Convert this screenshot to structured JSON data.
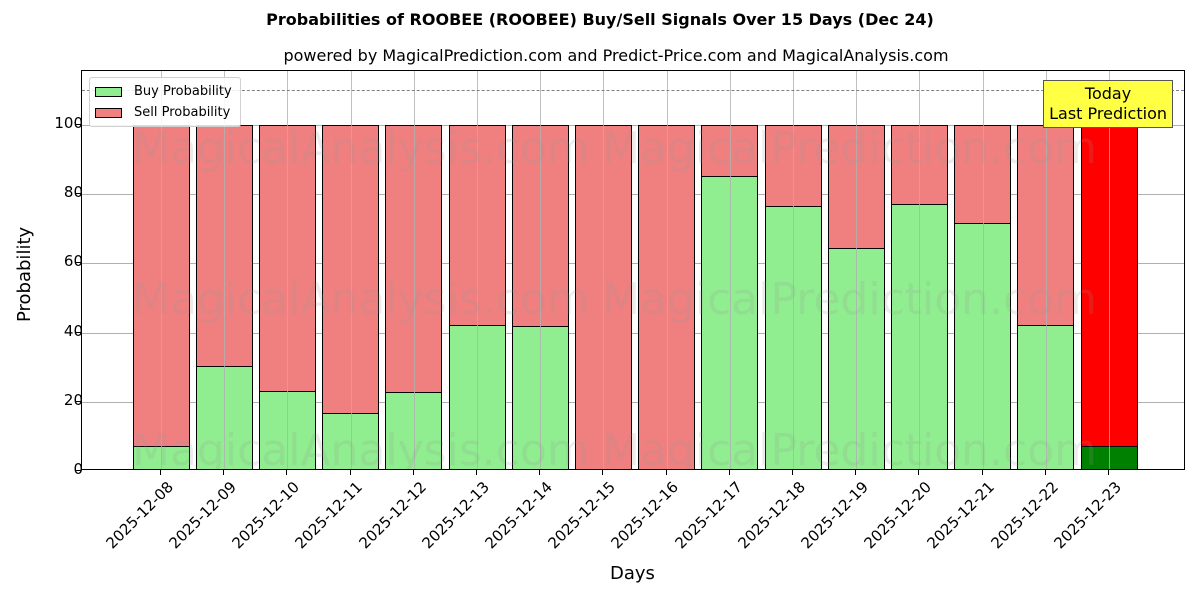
{
  "title": "Probabilities of ROOBEE (ROOBEE) Buy/Sell Signals Over 15 Days (Dec 24)",
  "subtitle": "powered by MagicalPrediction.com and Predict-Price.com and MagicalAnalysis.com",
  "legend": {
    "buy_label": "Buy Probability",
    "sell_label": "Sell Probability"
  },
  "annotation": {
    "line1": "Today",
    "line2": "Last Prediction"
  },
  "watermarks": [
    "MagicalAnalysis.com",
    "MagicalPrediction.com"
  ],
  "colors": {
    "buy": "#90ee90",
    "sell": "#f08080",
    "today_buy": "#008000",
    "today_sell": "#ff0000",
    "annotation_bg": "#ffff44"
  },
  "chart_data": {
    "type": "bar",
    "stacked": true,
    "title": "Probabilities of ROOBEE (ROOBEE) Buy/Sell Signals Over 15 Days (Dec 24)",
    "subtitle": "powered by MagicalPrediction.com and Predict-Price.com and MagicalAnalysis.com",
    "xlabel": "Days",
    "ylabel": "Probability",
    "ylim": [
      0,
      115
    ],
    "yticks": [
      0,
      20,
      40,
      60,
      80,
      100
    ],
    "grid": true,
    "legend_position": "upper left",
    "reference_line": {
      "y": 110,
      "style": "dashed",
      "color": "#808080"
    },
    "categories": [
      "2025-12-08",
      "2025-12-09",
      "2025-12-10",
      "2025-12-11",
      "2025-12-12",
      "2025-12-13",
      "2025-12-14",
      "2025-12-15",
      "2025-12-16",
      "2025-12-17",
      "2025-12-18",
      "2025-12-19",
      "2025-12-20",
      "2025-12-21",
      "2025-12-22",
      "2025-12-23"
    ],
    "series": [
      {
        "name": "Buy Probability",
        "values": [
          7.2,
          30.3,
          23.1,
          16.8,
          22.8,
          42.2,
          41.9,
          0,
          0,
          85.3,
          76.6,
          64.5,
          77.2,
          71.7,
          42.2,
          7.2
        ]
      },
      {
        "name": "Sell Probability",
        "values": [
          92.8,
          69.7,
          76.9,
          83.2,
          77.2,
          57.8,
          58.1,
          100,
          100,
          14.7,
          23.4,
          35.5,
          22.8,
          28.3,
          57.8,
          92.8
        ]
      }
    ],
    "annotations": [
      {
        "text": "Today\nLast Prediction",
        "x": "2025-12-23"
      }
    ]
  }
}
